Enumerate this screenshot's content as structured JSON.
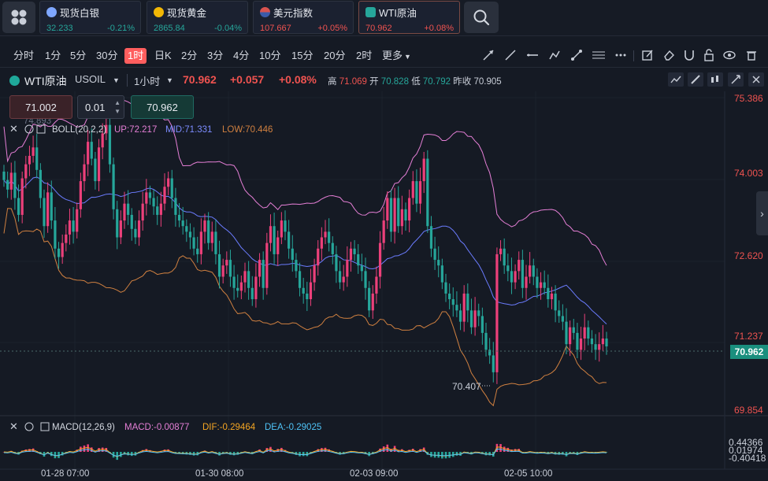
{
  "tickers": [
    {
      "name": "现货白银",
      "price": "32.233",
      "change": "-0.21%",
      "icon": "silver-coin-icon",
      "color": "#7fa7ff"
    },
    {
      "name": "现货黄金",
      "price": "2865.84",
      "change": "-0.04%",
      "icon": "gold-coin-icon",
      "color": "#f2b705"
    },
    {
      "name": "美元指数",
      "price": "107.667",
      "change": "+0.05%",
      "icon": "us-flag-icon",
      "color": "#d9534f"
    },
    {
      "name": "WTI原油",
      "price": "70.962",
      "change": "+0.08%",
      "icon": "oil-icon",
      "color": "#26a69a"
    }
  ],
  "timeframes": [
    "分时",
    "1分",
    "5分",
    "30分",
    "1时",
    "日K",
    "2分",
    "3分",
    "4分",
    "10分",
    "15分",
    "20分",
    "2时",
    "更多"
  ],
  "selected_timeframe": "1时",
  "symbol": {
    "name": "WTI原油",
    "code": "USOIL",
    "interval": "1小时",
    "price": "70.962",
    "change": "+0.057",
    "change_pct": "+0.08%",
    "high_label": "高",
    "high": "71.069",
    "open_label": "开",
    "open": "70.828",
    "low_label": "低",
    "low": "70.792",
    "prev_close_label": "昨收",
    "prev_close": "70.905"
  },
  "order": {
    "sell_price": "71.002",
    "lot": "0.01",
    "buy_price": "70.962"
  },
  "boll": {
    "label": "BOLL(20,2,2)",
    "up": "UP:72.217",
    "mid": "MID:71.331",
    "low": "LOW:70.446",
    "obscured_value": "74.893"
  },
  "macd": {
    "label": "MACD(12,26,9)",
    "macd": "MACD:-0.00877",
    "dif": "DIF:-0.29464",
    "dea": "DEA:-0.29025"
  },
  "chart_data": {
    "type": "candlestick",
    "price_axis_ticks": [
      "75.386",
      "74.003",
      "72.620",
      "71.237",
      "69.854"
    ],
    "current_price": "70.962",
    "min_marker": "70.407",
    "macd_axis_ticks": [
      "0.44366",
      "0.01974",
      "-0.40418"
    ],
    "time_axis_ticks": [
      "01-28 07:00",
      "01-30 08:00",
      "02-03 09:00",
      "02-05 10:00"
    ],
    "ylim": [
      69.854,
      75.386
    ],
    "colors": {
      "up": "#ec407a",
      "down": "#26a69a",
      "boll_up": "#e57fd6",
      "boll_mid": "#6b7cff",
      "boll_low": "#d08040",
      "dif": "#f5a623",
      "dea": "#4fc3f7"
    },
    "approx_closes": [
      73.92,
      73.75,
      74.05,
      73.6,
      73.3,
      73.95,
      74.2,
      74.35,
      74.5,
      74.1,
      73.6,
      73.1,
      73.7,
      73.2,
      72.7,
      72.55,
      72.8,
      72.95,
      73.2,
      73.0,
      73.4,
      73.9,
      74.2,
      74.6,
      74.3,
      73.9,
      74.5,
      74.75,
      74.9,
      74.2,
      73.4,
      72.9,
      73.2,
      73.5,
      73.3,
      73.05,
      72.9,
      73.2,
      73.5,
      73.7,
      73.6,
      73.45,
      73.3,
      73.5,
      73.8,
      73.95,
      73.6,
      73.3,
      73.2,
      73.1,
      73.0,
      72.9,
      72.7,
      72.6,
      73.0,
      73.2,
      72.8,
      73.0,
      72.6,
      72.2,
      72.4,
      72.5,
      72.2,
      72.0,
      71.95,
      72.1,
      72.3,
      72.0,
      71.8,
      72.2,
      72.5,
      72.0,
      72.8,
      73.1,
      72.6,
      72.9,
      73.2,
      73.0,
      72.7,
      72.5,
      72.3,
      72.0,
      71.9,
      71.8,
      72.1,
      72.4,
      72.7,
      72.9,
      73.0,
      72.8,
      72.6,
      72.3,
      72.1,
      72.2,
      72.5,
      72.7,
      72.6,
      72.4,
      72.3,
      72.0,
      71.6,
      71.9,
      72.2,
      72.8,
      73.2,
      73.6,
      73.0,
      73.6,
      73.1,
      73.4,
      73.2,
      73.6,
      73.9,
      73.5,
      73.9,
      74.3,
      73.1,
      72.7,
      72.5,
      72.4,
      72.1,
      71.9,
      71.8,
      71.7,
      71.6,
      71.4,
      71.9,
      71.6,
      71.3,
      71.6,
      71.5,
      71.2,
      70.9,
      70.8,
      70.5,
      72.6,
      72.7,
      72.4,
      72.3,
      72.1,
      72.3,
      72.5,
      72.0,
      72.2,
      72.4,
      72.2,
      72.0,
      72.1,
      72.0,
      71.8,
      71.9,
      71.6,
      71.5,
      71.4,
      71.0,
      71.3,
      71.2,
      70.9,
      71.1,
      71.3,
      71.1,
      71.0,
      70.9,
      71.0,
      71.1,
      70.96
    ]
  }
}
